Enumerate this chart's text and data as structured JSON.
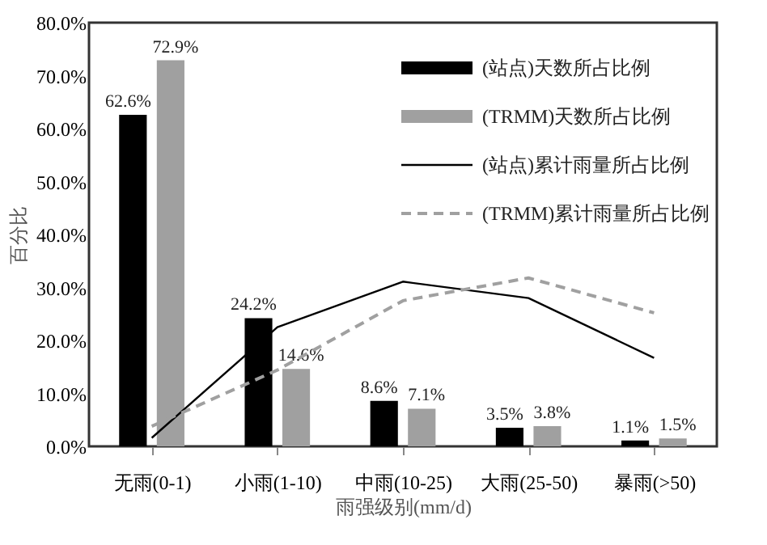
{
  "chart_data": {
    "type": "bar",
    "xlabel": "雨强级别(mm/d)",
    "ylabel": "百分比",
    "categories": [
      "无雨(0-1)",
      "小雨(1-10)",
      "中雨(10-25)",
      "大雨(25-50)",
      "暴雨(>50)"
    ],
    "series": [
      {
        "name": "(站点)天数所占比例",
        "type": "bar",
        "color": "#000000",
        "values": [
          62.6,
          24.2,
          8.6,
          3.5,
          1.1
        ],
        "value_labels": [
          "62.6%",
          "24.2%",
          "8.6%",
          "3.5%",
          "1.1%"
        ]
      },
      {
        "name": "(TRMM)天数所占比例",
        "type": "bar",
        "color": "#a0a0a0",
        "values": [
          72.9,
          14.6,
          7.1,
          3.8,
          1.5
        ],
        "value_labels": [
          "72.9%",
          "14.6%",
          "7.1%",
          "3.8%",
          "1.5%"
        ]
      },
      {
        "name": "(站点)累计雨量所占比例",
        "type": "line",
        "color": "#000000",
        "line_style": "solid",
        "values": [
          1.6,
          22.5,
          31.1,
          28.0,
          16.7
        ]
      },
      {
        "name": "(TRMM)累计雨量所占比例",
        "type": "line",
        "color": "#a0a0a0",
        "line_style": "dashed",
        "values": [
          3.8,
          14.4,
          27.5,
          31.8,
          25.2
        ]
      }
    ],
    "ylim": [
      0,
      80
    ],
    "yticks": [
      {
        "value": 0,
        "label": "0.0%"
      },
      {
        "value": 10,
        "label": "10.0%"
      },
      {
        "value": 20,
        "label": "20.0%"
      },
      {
        "value": 30,
        "label": "30.0%"
      },
      {
        "value": 40,
        "label": "40.0%"
      },
      {
        "value": 50,
        "label": "50.0%"
      },
      {
        "value": 60,
        "label": "60.0%"
      },
      {
        "value": 70,
        "label": "70.0%"
      },
      {
        "value": 80,
        "label": "80.0%"
      }
    ],
    "grid": false,
    "legend": "top right",
    "marker": "none"
  }
}
